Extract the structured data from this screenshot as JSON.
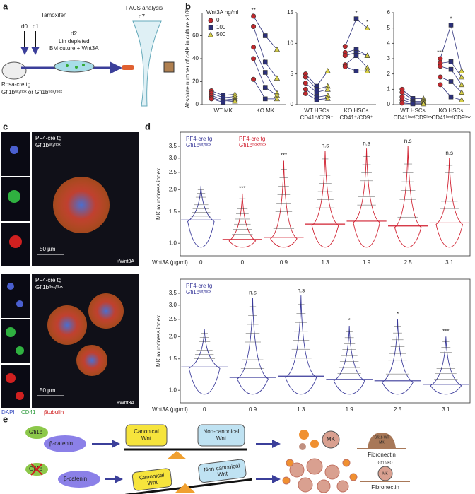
{
  "panel_labels": [
    "a",
    "b",
    "c",
    "d",
    "e"
  ],
  "panel_a": {
    "tamoxifen": "Tamoxifen",
    "d0": "d0",
    "d1": "d1",
    "d2": "d2",
    "culture": [
      "Lin depleted",
      "BM cuture + Wnt3A"
    ],
    "facs": "FACS analysis",
    "d7": "d7",
    "mouse": [
      "Rosa-cre tg",
      "Gfi1bʷᵗ/ᶠˡᵒˣ or Gfi1bᶠˡᵒˣ/ᶠˡᵒˣ"
    ]
  },
  "chart_data": [
    {
      "type": "paired_dots",
      "ylabel": "Absolute number of cells in culture ×10³",
      "legend_title": "Wnt3A  ng/ml",
      "categories": [
        [
          "WT MK"
        ],
        [
          "KO MK"
        ]
      ],
      "series": [
        {
          "name": "0",
          "color": "#c0282d",
          "marker": "circle",
          "values": [
            [
              12,
              10,
              8,
              6,
              5
            ],
            [
              77,
              68,
              50,
              40,
              22
            ]
          ]
        },
        {
          "name": "100",
          "color": "#2b2f7a",
          "marker": "square",
          "values": [
            [
              8,
              6,
              4,
              3,
              2
            ],
            [
              60,
              37,
              28,
              15,
              5
            ]
          ]
        },
        {
          "name": "500",
          "color": "#d8d048",
          "marker": "triangle",
          "values": [
            [
              9,
              7,
              5,
              4,
              3
            ],
            [
              48,
              23,
              10,
              8,
              5
            ]
          ]
        }
      ],
      "annotations": [
        [
          null,
          null,
          null
        ],
        [
          "**",
          null,
          null
        ]
      ],
      "ylim": [
        0,
        80
      ],
      "yticks": [
        0,
        20,
        40,
        60
      ]
    },
    {
      "type": "paired_dots",
      "categories": [
        [
          "WT HSCs",
          "CD41⁺/CD9⁺"
        ],
        [
          "KO HSCs",
          "CD41⁺/CD9⁺"
        ]
      ],
      "series": [
        {
          "name": "0",
          "color": "#c0282d",
          "marker": "circle",
          "values": [
            [
              5,
              4.5,
              3.5,
              2.5,
              1.8
            ],
            [
              9.5,
              8.5,
              8,
              6.5,
              6.2
            ]
          ]
        },
        {
          "name": "100",
          "color": "#2b2f7a",
          "marker": "square",
          "values": [
            [
              3,
              2.5,
              2,
              1.2,
              0.8
            ],
            [
              14,
              9,
              8.5,
              8,
              5.5
            ]
          ]
        },
        {
          "name": "500",
          "color": "#d8d048",
          "marker": "triangle",
          "values": [
            [
              5.5,
              3,
              2.5,
              1.5,
              1
            ],
            [
              12.5,
              8,
              8,
              6,
              5.5
            ]
          ]
        }
      ],
      "annotations": [
        [
          null,
          null,
          null
        ],
        [
          null,
          "*",
          "*"
        ]
      ],
      "ylim": [
        0,
        15
      ],
      "yticks": [
        0,
        5,
        10,
        15
      ]
    },
    {
      "type": "paired_dots",
      "categories": [
        [
          "WT HSCs",
          "CD41ˡᵒʷ/CD9ˡᵒʷ"
        ],
        [
          "KO HSCs",
          "CD41ˡᵒʷ/CD9ˡᵒʷ"
        ]
      ],
      "series": [
        {
          "name": "0",
          "color": "#c0282d",
          "marker": "circle",
          "values": [
            [
              1.0,
              0.8,
              0.5,
              0.3,
              0.1
            ],
            [
              3,
              2.7,
              2.5,
              1.8,
              1.3
            ]
          ]
        },
        {
          "name": "100",
          "color": "#2b2f7a",
          "marker": "square",
          "values": [
            [
              0.4,
              0.3,
              0.2,
              0.1,
              0.05
            ],
            [
              5.2,
              2.8,
              2.3,
              1.5,
              0.5
            ]
          ]
        },
        {
          "name": "500",
          "color": "#d8d048",
          "marker": "triangle",
          "values": [
            [
              0.4,
              0.3,
              0.2,
              0.1,
              0.05
            ],
            [
              2.2,
              1.8,
              1.3,
              0.8,
              0.3
            ]
          ]
        }
      ],
      "annotations": [
        [
          null,
          null,
          null
        ],
        [
          "***",
          "*",
          null
        ]
      ],
      "ylim": [
        0,
        6
      ],
      "yticks": [
        0,
        1,
        2,
        3,
        4,
        5,
        6
      ]
    },
    {
      "type": "bean",
      "ylabel": "MK roundness index",
      "xlabel": "Wnt3A (µg/ml)",
      "log_scale": true,
      "legend": [
        {
          "lines": [
            "PF4-cre tg",
            "Gfi1bʷᵗ/ᶠˡᵒˣ"
          ],
          "color": "#3a3a9a"
        },
        {
          "lines": [
            "PF4-cre tg",
            "Gfi1bᶠˡᵒˣ/ᶠˡᵒˣ"
          ],
          "color": "#d02030"
        }
      ],
      "categories": [
        "0",
        "0",
        "0.9",
        "1.3",
        "1.9",
        "2.5",
        "3.1"
      ],
      "colors": [
        "#3a3a9a",
        "#d02030",
        "#d02030",
        "#d02030",
        "#d02030",
        "#d02030",
        "#d02030"
      ],
      "medians": [
        1.35,
        1.05,
        1.08,
        1.28,
        1.33,
        1.25,
        1.3
      ],
      "max": [
        2.1,
        1.9,
        2.9,
        3.3,
        3.4,
        3.5,
        3.0
      ],
      "min": [
        0.95,
        0.95,
        0.95,
        0.95,
        0.95,
        0.95,
        0.95
      ],
      "annotations": [
        null,
        "***",
        "***",
        "n.s",
        "n.s",
        "n.s",
        "n.s"
      ],
      "ylim": [
        0.85,
        4.2
      ],
      "yticks": [
        {
          "value": 1.0,
          "label": "1.0"
        },
        {
          "value": 1.5,
          "label": "1.5"
        },
        {
          "value": 2.0,
          "label": "2.0"
        },
        {
          "value": 2.5,
          "label": "2.5"
        },
        {
          "value": 3.0,
          "label": "3.0"
        },
        {
          "value": 3.5,
          "label": "3.5"
        }
      ]
    },
    {
      "type": "bean",
      "ylabel": "MK roundness index",
      "xlabel": "Wnt3A (µg/ml)",
      "log_scale": true,
      "legend": [
        {
          "lines": [
            "PF4-cre tg",
            "Gfi1bʷᵗ/ᶠˡᵒˣ"
          ],
          "color": "#3a3a9a"
        }
      ],
      "categories": [
        "0",
        "0.9",
        "1.3",
        "1.9",
        "2.5",
        "3.1"
      ],
      "colors": [
        "#3a3a9a",
        "#3a3a9a",
        "#3a3a9a",
        "#3a3a9a",
        "#3a3a9a",
        "#3a3a9a"
      ],
      "medians": [
        1.35,
        1.18,
        1.2,
        1.15,
        1.13,
        1.08
      ],
      "max": [
        2.2,
        3.3,
        3.4,
        2.3,
        2.5,
        2.0
      ],
      "min": [
        0.95,
        0.95,
        0.95,
        0.95,
        0.95,
        0.95
      ],
      "annotations": [
        null,
        "n.s",
        "n.s",
        "*",
        "*",
        "***"
      ],
      "ylim": [
        0.85,
        4.2
      ],
      "yticks": [
        {
          "value": 1.0,
          "label": "1.0"
        },
        {
          "value": 1.5,
          "label": "1.5"
        },
        {
          "value": 2.0,
          "label": "2.0"
        },
        {
          "value": 2.5,
          "label": "2.5"
        },
        {
          "value": 3.0,
          "label": "3.0"
        },
        {
          "value": 3.5,
          "label": "3.5"
        }
      ]
    }
  ],
  "panel_c": {
    "top_label": [
      "PF4-cre tg",
      "Gfi1bʷᵗ/ᶠˡᵒˣ"
    ],
    "bottom_label": [
      "PF4-cre tg",
      "Gfi1bᶠˡᵒˣ/ᶠˡᵒˣ"
    ],
    "scale": "50 µm",
    "treatment": "+Wnt3A",
    "channels": [
      "DAPI",
      "CD41",
      "βtubulin"
    ]
  },
  "panel_e": {
    "gfi1b": "Gfi1b",
    "catenin": "β-catenin",
    "canonical": [
      "Canonical",
      "Wnt"
    ],
    "noncanonical": [
      "Non-canonical",
      "Wnt"
    ],
    "mk": "MK",
    "wt_mk": [
      "Gfi1b WT",
      "MK"
    ],
    "ko_mk": [
      "Gfi1b-KO",
      "MK"
    ],
    "fibronectin": "Fibronectin"
  }
}
